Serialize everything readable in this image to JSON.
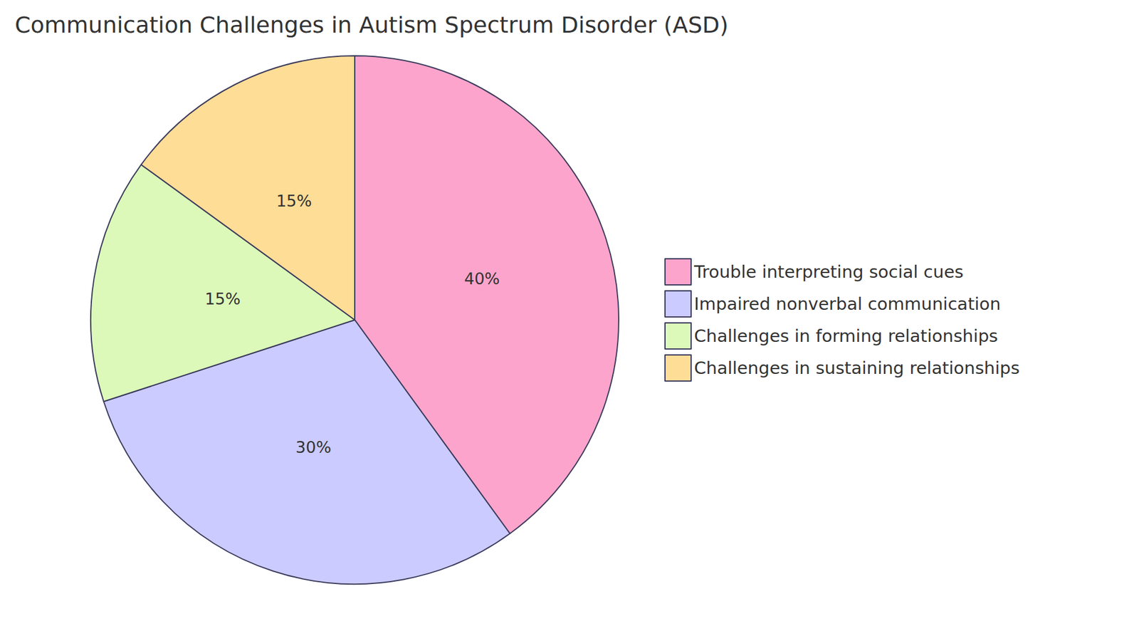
{
  "chart_data": {
    "type": "pie",
    "title": "Communication Challenges in Autism Spectrum Disorder (ASD)",
    "categories": [
      "Trouble interpreting social cues",
      "Impaired nonverbal communication",
      "Challenges in forming relationships",
      "Challenges in sustaining relationships"
    ],
    "values": [
      40,
      30,
      15,
      15
    ],
    "value_labels": [
      "40%",
      "30%",
      "15%",
      "15%"
    ],
    "colors": [
      "#fda4cc",
      "#cbcbff",
      "#dcf9b9",
      "#fedd96"
    ],
    "data_labels": true,
    "legend": "right"
  }
}
